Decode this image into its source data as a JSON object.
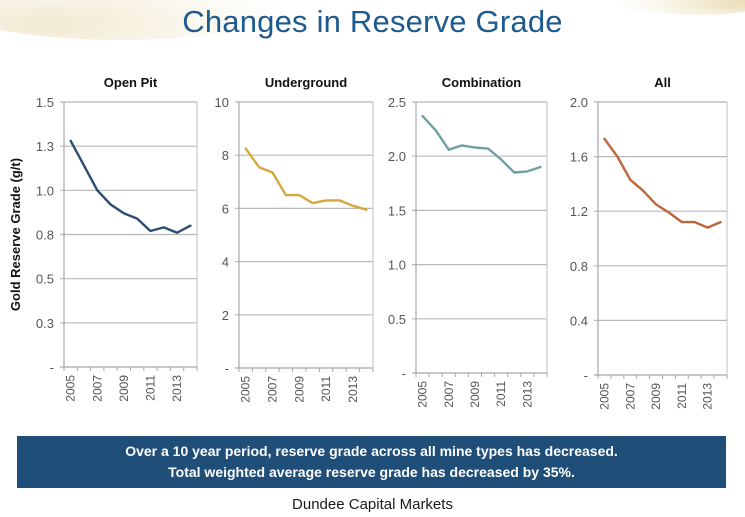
{
  "header": {
    "title": "Changes in Reserve Grade"
  },
  "chart_data": [
    {
      "type": "line",
      "title": "Open Pit",
      "xlabel": "",
      "ylabel": "Gold Reserve Grade (g/t)",
      "x": [
        2005,
        2006,
        2007,
        2008,
        2009,
        2010,
        2011,
        2012,
        2013,
        2014
      ],
      "x_tick_labels": [
        "2005",
        "2007",
        "2009",
        "2011",
        "2013"
      ],
      "y_tick_labels": [
        "-",
        "0.3",
        "0.5",
        "0.8",
        "1.0",
        "1.3",
        "1.5"
      ],
      "ylim": [
        0,
        1.5
      ],
      "grid": true,
      "color": "#2b4f72",
      "series": [
        {
          "name": "Open Pit",
          "values": [
            1.28,
            1.14,
            1.0,
            0.92,
            0.87,
            0.84,
            0.77,
            0.79,
            0.76,
            0.8
          ]
        }
      ]
    },
    {
      "type": "line",
      "title": "Underground",
      "xlabel": "",
      "ylabel": "",
      "x": [
        2005,
        2006,
        2007,
        2008,
        2009,
        2010,
        2011,
        2012,
        2013,
        2014
      ],
      "x_tick_labels": [
        "2005",
        "2007",
        "2009",
        "2011",
        "2013"
      ],
      "y_tick_labels": [
        "-",
        "2",
        "4",
        "6",
        "8",
        "10"
      ],
      "ylim": [
        0,
        10
      ],
      "grid": true,
      "color": "#d4a83c",
      "series": [
        {
          "name": "Underground",
          "values": [
            8.25,
            7.55,
            7.35,
            6.5,
            6.5,
            6.2,
            6.3,
            6.3,
            6.1,
            5.95
          ]
        }
      ]
    },
    {
      "type": "line",
      "title": "Combination",
      "xlabel": "",
      "ylabel": "",
      "x": [
        2005,
        2006,
        2007,
        2008,
        2009,
        2010,
        2011,
        2012,
        2013,
        2014
      ],
      "x_tick_labels": [
        "2005",
        "2007",
        "2009",
        "2011",
        "2013"
      ],
      "y_tick_labels": [
        "-",
        "0.5",
        "1.0",
        "1.5",
        "2.0",
        "2.5"
      ],
      "ylim": [
        0,
        2.5
      ],
      "grid": true,
      "color": "#6fa0a8",
      "series": [
        {
          "name": "Combination",
          "values": [
            2.37,
            2.24,
            2.06,
            2.1,
            2.08,
            2.07,
            1.97,
            1.85,
            1.86,
            1.9
          ]
        }
      ]
    },
    {
      "type": "line",
      "title": "All",
      "xlabel": "",
      "ylabel": "",
      "x": [
        2005,
        2006,
        2007,
        2008,
        2009,
        2010,
        2011,
        2012,
        2013,
        2014
      ],
      "x_tick_labels": [
        "2005",
        "2007",
        "2009",
        "2011",
        "2013"
      ],
      "y_tick_labels": [
        "-",
        "0.4",
        "0.8",
        "1.2",
        "1.6",
        "2.0"
      ],
      "ylim": [
        0,
        2.0
      ],
      "grid": true,
      "color": "#c0653a",
      "series": [
        {
          "name": "All",
          "values": [
            1.73,
            1.6,
            1.43,
            1.35,
            1.25,
            1.19,
            1.12,
            1.12,
            1.08,
            1.12
          ]
        }
      ]
    }
  ],
  "callout": {
    "line1": "Over a 10 year period, reserve grade across all mine types has decreased.",
    "line2": "Total weighted average reserve grade has decreased by 35%."
  },
  "footer": {
    "source": "Dundee Capital Markets"
  }
}
